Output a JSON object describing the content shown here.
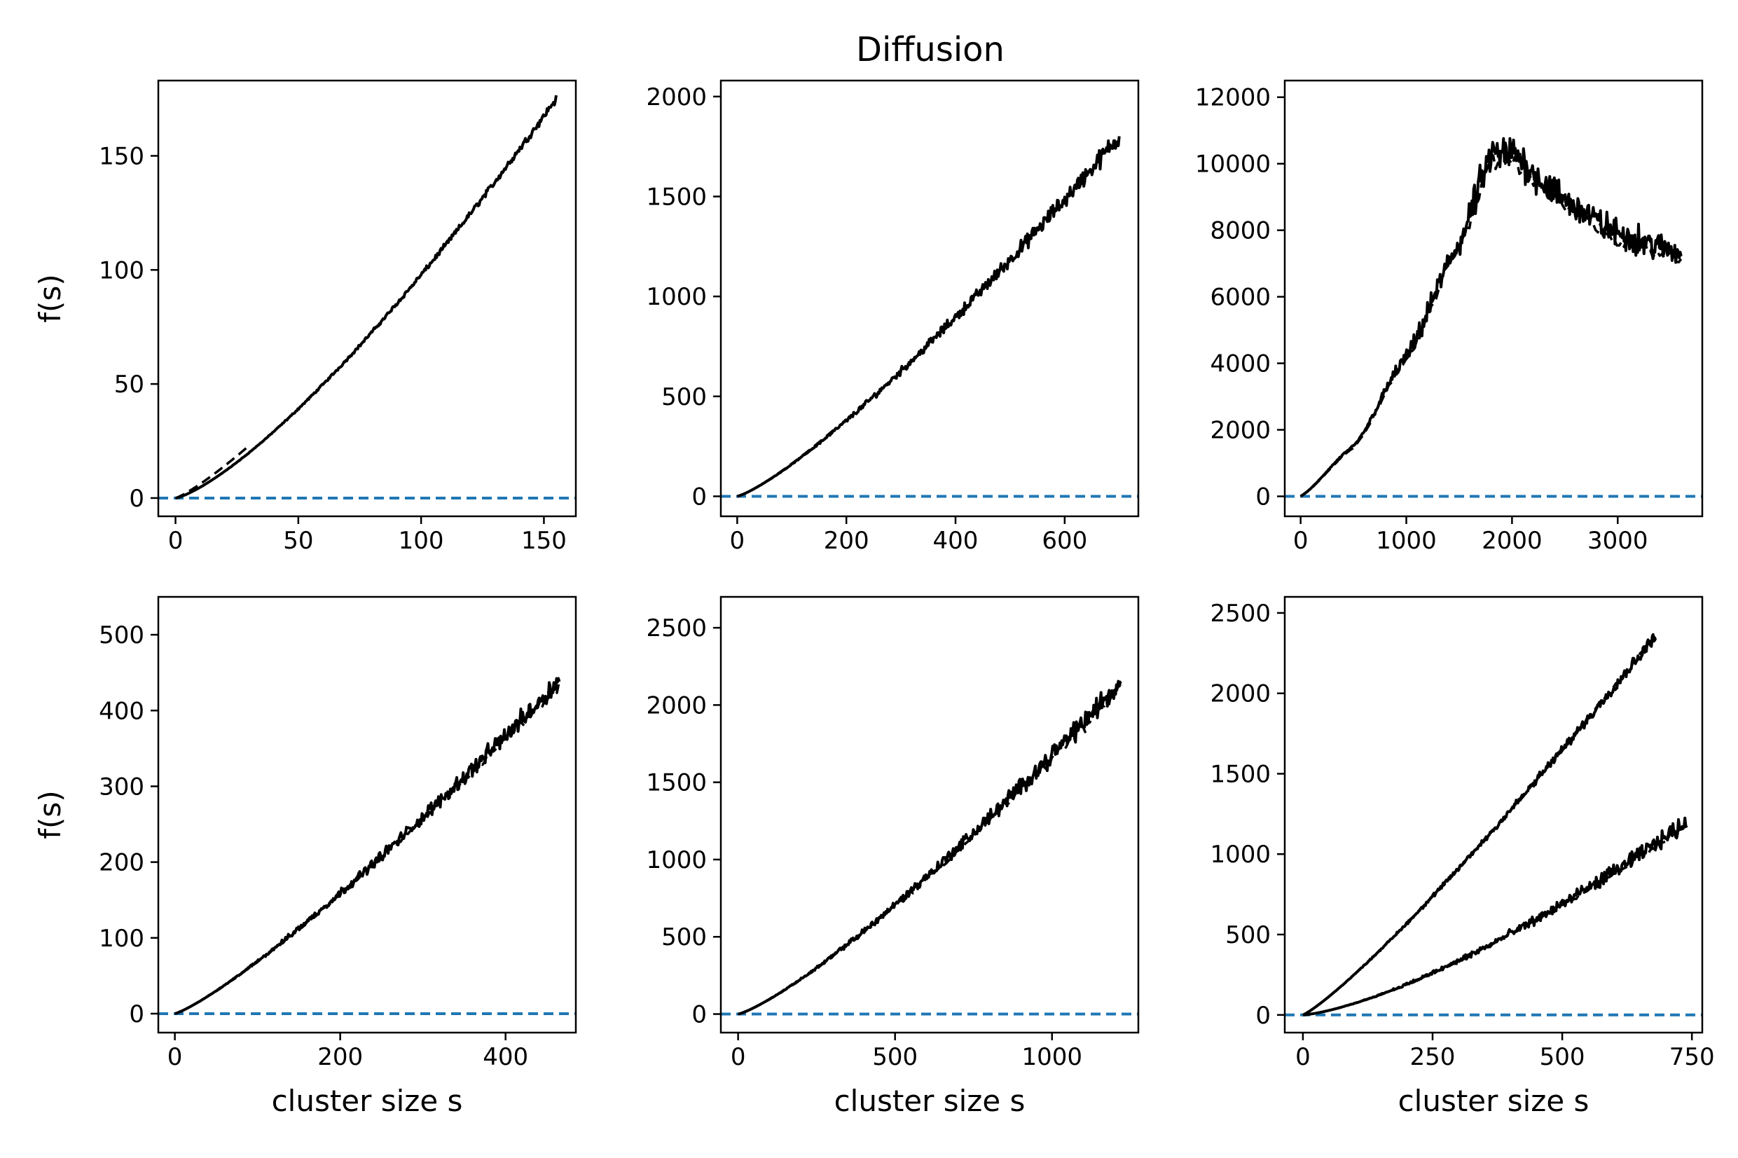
{
  "title": "Diffusion",
  "colors": {
    "data": "#000000",
    "baseline": "#1f77b4",
    "frame": "#000000"
  },
  "chart_data": [
    {
      "type": "line",
      "panel": "top-left",
      "xlabel": "",
      "ylabel": "f(s)",
      "xlim": [
        -7,
        163
      ],
      "ylim": [
        -8,
        183
      ],
      "xticks": [
        0,
        50,
        100,
        150
      ],
      "yticks": [
        0,
        50,
        100,
        150
      ],
      "xtick_labels": [
        "0",
        "50",
        "100",
        "150"
      ],
      "ytick_labels": [
        "0",
        "50",
        "100",
        "150"
      ],
      "baseline_y": 0,
      "series": [
        {
          "style": "solid",
          "x_max": 155,
          "y_max": 175,
          "curve": "convex",
          "power": 1.4,
          "noise_frac": 0.012,
          "points": [
            [
              0,
              0
            ],
            [
              20,
              14
            ],
            [
              50,
              43
            ],
            [
              100,
              100
            ],
            [
              125,
              125
            ],
            [
              150,
              160
            ],
            [
              155,
              172
            ]
          ]
        },
        {
          "style": "dashed",
          "x_max": 30,
          "y_max": 23,
          "curve": "convex",
          "power": 1.25,
          "noise_frac": 0,
          "points": [
            [
              0,
              0
            ],
            [
              15,
              10
            ],
            [
              30,
              23
            ]
          ]
        }
      ]
    },
    {
      "type": "line",
      "panel": "top-center",
      "xlabel": "",
      "ylabel": "",
      "xlim": [
        -30,
        735
      ],
      "ylim": [
        -100,
        2080
      ],
      "xticks": [
        0,
        200,
        400,
        600
      ],
      "yticks": [
        0,
        500,
        1000,
        1500,
        2000
      ],
      "xtick_labels": [
        "0",
        "200",
        "400",
        "600"
      ],
      "ytick_labels": [
        "0",
        "500",
        "1000",
        "1500",
        "2000"
      ],
      "baseline_y": 0,
      "series": [
        {
          "style": "solid",
          "x_max": 700,
          "y_max": 1800,
          "curve": "convex",
          "power": 1.3,
          "noise_frac": 0.035,
          "points": [
            [
              0,
              0
            ],
            [
              100,
              160
            ],
            [
              200,
              450
            ],
            [
              400,
              1000
            ],
            [
              600,
              1530
            ],
            [
              700,
              1800
            ]
          ]
        },
        {
          "style": "dashed",
          "x_max": 180,
          "y_max": 340,
          "curve": "convex",
          "power": 1.3,
          "noise_frac": 0,
          "points": [
            [
              0,
              0
            ],
            [
              90,
              140
            ],
            [
              180,
              340
            ]
          ]
        }
      ]
    },
    {
      "type": "line",
      "panel": "top-right",
      "xlabel": "",
      "ylabel": "",
      "xlim": [
        -150,
        3800
      ],
      "ylim": [
        -600,
        12500
      ],
      "xticks": [
        0,
        1000,
        2000,
        3000
      ],
      "yticks": [
        0,
        2000,
        4000,
        6000,
        8000,
        10000,
        12000
      ],
      "xtick_labels": [
        "0",
        "1000",
        "2000",
        "3000"
      ],
      "ytick_labels": [
        "0",
        "2000",
        "4000",
        "6000",
        "8000",
        "10000",
        "12000"
      ],
      "baseline_y": 0,
      "series": [
        {
          "style": "solid",
          "x_max": 3600,
          "curve": "piecewise",
          "noise_frac": 0.07,
          "points": [
            [
              0,
              0
            ],
            [
              500,
              1500
            ],
            [
              1000,
              4200
            ],
            [
              1500,
              7600
            ],
            [
              1800,
              10200
            ],
            [
              2000,
              10300
            ],
            [
              2500,
              8900
            ],
            [
              3000,
              7900
            ],
            [
              3600,
              7300
            ]
          ]
        },
        {
          "style": "dashed",
          "x_max": 3600,
          "curve": "piecewise",
          "noise_frac": 0.03,
          "points": [
            [
              0,
              0
            ],
            [
              500,
              1450
            ],
            [
              1000,
              4100
            ],
            [
              1500,
              7500
            ],
            [
              1800,
              10000
            ],
            [
              2000,
              10100
            ],
            [
              2500,
              8700
            ],
            [
              3000,
              7700
            ],
            [
              3600,
              7100
            ]
          ]
        }
      ]
    },
    {
      "type": "line",
      "panel": "bottom-left",
      "xlabel": "cluster size s",
      "ylabel": "f(s)",
      "xlim": [
        -20,
        485
      ],
      "ylim": [
        -25,
        550
      ],
      "xticks": [
        0,
        200,
        400
      ],
      "yticks": [
        0,
        100,
        200,
        300,
        400,
        500
      ],
      "xtick_labels": [
        "0",
        "200",
        "400"
      ],
      "ytick_labels": [
        "0",
        "100",
        "200",
        "300",
        "400",
        "500"
      ],
      "baseline_y": 0,
      "series": [
        {
          "style": "solid",
          "x_max": 465,
          "y_max": 440,
          "curve": "convex",
          "power": 1.25,
          "noise_frac": 0.04,
          "points": [
            [
              0,
              0
            ],
            [
              100,
              75
            ],
            [
              200,
              190
            ],
            [
              300,
              285
            ],
            [
              400,
              390
            ],
            [
              465,
              440
            ]
          ]
        },
        {
          "style": "dashed",
          "x_max": 465,
          "y_max": 435,
          "curve": "convex",
          "power": 1.25,
          "noise_frac": 0.02,
          "points": [
            [
              0,
              0
            ],
            [
              200,
              188
            ],
            [
              465,
              435
            ]
          ]
        }
      ]
    },
    {
      "type": "line",
      "panel": "bottom-center",
      "xlabel": "cluster size s",
      "ylabel": "",
      "xlim": [
        -55,
        1275
      ],
      "ylim": [
        -120,
        2700
      ],
      "xticks": [
        0,
        500,
        1000
      ],
      "yticks": [
        0,
        500,
        1000,
        1500,
        2000,
        2500
      ],
      "xtick_labels": [
        "0",
        "500",
        "1000"
      ],
      "ytick_labels": [
        "0",
        "500",
        "1000",
        "1500",
        "2000",
        "2500"
      ],
      "baseline_y": 0,
      "series": [
        {
          "style": "solid",
          "x_max": 1220,
          "y_max": 2150,
          "curve": "convex",
          "power": 1.3,
          "noise_frac": 0.045,
          "points": [
            [
              0,
              0
            ],
            [
              300,
              420
            ],
            [
              500,
              780
            ],
            [
              800,
              1400
            ],
            [
              1000,
              1800
            ],
            [
              1220,
              2150
            ]
          ]
        },
        {
          "style": "dashed",
          "x_max": 1220,
          "y_max": 2120,
          "curve": "convex",
          "power": 1.3,
          "noise_frac": 0.03,
          "points": [
            [
              0,
              0
            ],
            [
              500,
              770
            ],
            [
              1220,
              2120
            ]
          ]
        }
      ]
    },
    {
      "type": "line",
      "panel": "bottom-right",
      "xlabel": "cluster size s",
      "ylabel": "",
      "xlim": [
        -35,
        770
      ],
      "ylim": [
        -110,
        2600
      ],
      "xticks": [
        0,
        250,
        500,
        750
      ],
      "yticks": [
        0,
        500,
        1000,
        1500,
        2000,
        2500
      ],
      "xtick_labels": [
        "0",
        "250",
        "500",
        "750"
      ],
      "ytick_labels": [
        "0",
        "500",
        "1000",
        "1500",
        "2000",
        "2500"
      ],
      "baseline_y": 0,
      "series": [
        {
          "style": "solid",
          "x_max": 680,
          "y_max": 2360,
          "curve": "convex",
          "power": 1.2,
          "noise_frac": 0.02,
          "points": [
            [
              0,
              0
            ],
            [
              250,
              750
            ],
            [
              500,
              1650
            ],
            [
              680,
              2360
            ]
          ]
        },
        {
          "style": "dashed",
          "x_max": 680,
          "y_max": 2360,
          "curve": "convex",
          "power": 1.2,
          "noise_frac": 0.01,
          "points": [
            [
              0,
              0
            ],
            [
              250,
              760
            ],
            [
              500,
              1660
            ],
            [
              680,
              2360
            ]
          ]
        },
        {
          "style": "solid",
          "x_max": 740,
          "y_max": 1200,
          "curve": "convex",
          "power": 1.5,
          "noise_frac": 0.06,
          "points": [
            [
              0,
              0
            ],
            [
              250,
              230
            ],
            [
              500,
              680
            ],
            [
              740,
              1200
            ]
          ]
        },
        {
          "style": "dashed",
          "x_max": 740,
          "y_max": 1180,
          "curve": "convex",
          "power": 1.5,
          "noise_frac": 0.03,
          "points": [
            [
              0,
              0
            ],
            [
              250,
              225
            ],
            [
              500,
              670
            ],
            [
              740,
              1180
            ]
          ]
        }
      ]
    }
  ]
}
